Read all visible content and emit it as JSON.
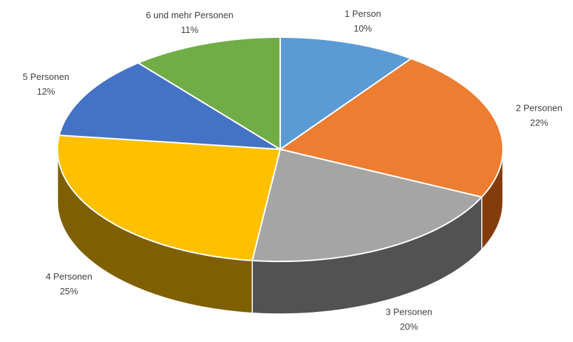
{
  "chart_data": {
    "type": "pie3d",
    "categories": [
      "1 Person",
      "2 Personen",
      "3 Personen",
      "4 Personen",
      "5 Personen",
      "6 und mehr Personen"
    ],
    "values": [
      10,
      22,
      20,
      25,
      12,
      11
    ],
    "value_labels": [
      "10%",
      "22%",
      "20%",
      "25%",
      "12%",
      "11%"
    ],
    "colors": [
      "#5b9bd5",
      "#ed7d31",
      "#a5a5a5",
      "#ffc000",
      "#4472c4",
      "#70ad47"
    ],
    "side_colors": [
      "#2e5f8a",
      "#843c0c",
      "#525252",
      "#7f6000",
      "#203864",
      "#375623"
    ]
  }
}
